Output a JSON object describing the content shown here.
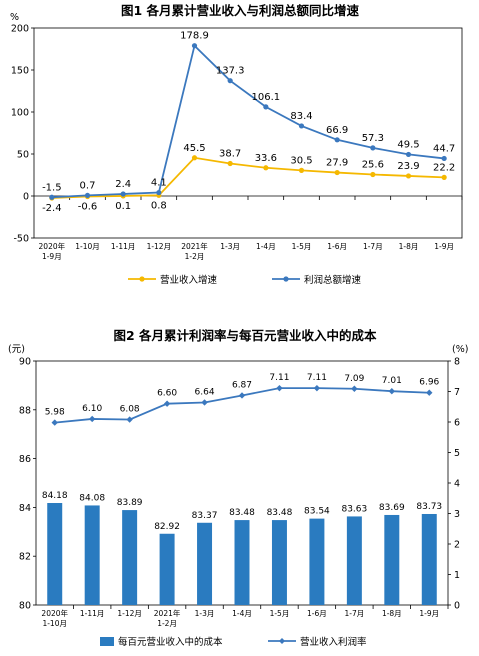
{
  "chart_data": [
    {
      "type": "line",
      "title": "图1  各月累计营业收入与利润总额同比增速",
      "unit_label": "%",
      "categories": [
        "2020年\n1-9月",
        "1-10月",
        "1-11月",
        "1-12月",
        "2021年\n1-2月",
        "1-3月",
        "1-4月",
        "1-5月",
        "1-6月",
        "1-7月",
        "1-8月",
        "1-9月"
      ],
      "ylim": [
        -50,
        200
      ],
      "yticks": [
        -50,
        0,
        50,
        100,
        150,
        200
      ],
      "series": [
        {
          "name": "营业收入增速",
          "color": "#F5B800",
          "values": [
            -2.4,
            -0.6,
            0.1,
            0.8,
            45.5,
            38.7,
            33.6,
            30.5,
            27.9,
            25.6,
            23.9,
            22.2
          ]
        },
        {
          "name": "利润总额增速",
          "color": "#3B78BE",
          "values": [
            -1.5,
            0.7,
            2.4,
            4.1,
            178.9,
            137.3,
            106.1,
            83.4,
            66.9,
            57.3,
            49.5,
            44.7
          ]
        }
      ],
      "legend": "bottom"
    },
    {
      "type": "bar+line",
      "title": "图2  各月累计利润率与每百元营业收入中的成本",
      "left_unit": "(元)",
      "right_unit": "(%)",
      "categories": [
        "2020年\n1-10月",
        "1-11月",
        "1-12月",
        "2021年\n1-2月",
        "1-3月",
        "1-4月",
        "1-5月",
        "1-6月",
        "1-7月",
        "1-8月",
        "1-9月"
      ],
      "ylim_left": [
        80,
        90
      ],
      "yticks_left": [
        80,
        82,
        84,
        86,
        88,
        90
      ],
      "ylim_right": [
        0,
        8
      ],
      "yticks_right": [
        0,
        1,
        2,
        3,
        4,
        5,
        6,
        7,
        8
      ],
      "bar_series": {
        "name": "每百元营业收入中的成本",
        "color": "#2A7BC0",
        "values": [
          84.18,
          84.08,
          83.89,
          82.92,
          83.37,
          83.48,
          83.48,
          83.54,
          83.63,
          83.69,
          83.73
        ]
      },
      "line_series": {
        "name": "营业收入利润率",
        "color": "#3B78BE",
        "values": [
          5.98,
          6.1,
          6.08,
          6.6,
          6.64,
          6.87,
          7.11,
          7.11,
          7.09,
          7.01,
          6.96
        ]
      },
      "legend": "bottom"
    }
  ]
}
